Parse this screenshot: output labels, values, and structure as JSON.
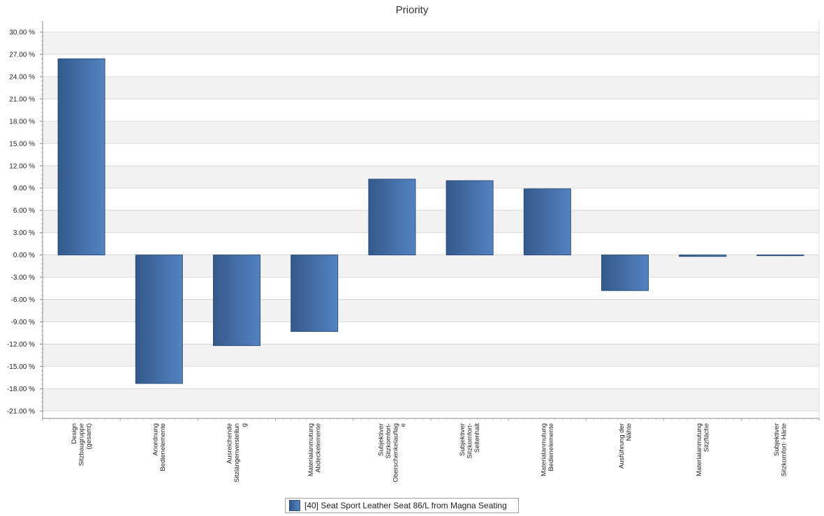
{
  "chart_data": {
    "type": "bar",
    "title": "Priority",
    "xlabel": "",
    "ylabel": "",
    "ylim": [
      -22.0,
      31.5
    ],
    "grid": true,
    "legend_position": "bottom",
    "y_ticks": [
      30,
      27,
      24,
      21,
      18,
      15,
      12,
      9,
      6,
      3,
      0,
      -3,
      -6,
      -9,
      -12,
      -15,
      -18,
      -21
    ],
    "y_tick_labels": [
      "30.00 %",
      "27.00 %",
      "24.00 %",
      "21.00 %",
      "18.00 %",
      "15.00 %",
      "12.00 %",
      "9.00 %",
      "6.00 %",
      "3.00 %",
      "0.00 %",
      "-3.00 %",
      "-6.00 %",
      "-9.00 %",
      "-12.00 %",
      "-15.00 %",
      "-18.00 %",
      "-21.00 %"
    ],
    "categories": [
      [
        "Design",
        "Sitzbaugruppe",
        "(gesamt)"
      ],
      [
        "Anordnung",
        "Bedienelemente"
      ],
      [
        "Ausreichende",
        "Sitzlängenverstellun",
        "g"
      ],
      [
        "Materialanmutung",
        "Abdeckelemente"
      ],
      [
        "Subjektiver",
        "Sitzkomfort-",
        "Oberschenkelauflag",
        "e"
      ],
      [
        "Subjektiver",
        "Sitzkomfort-",
        "Seitenhalt"
      ],
      [
        "Materialanmutung",
        "Bedienelemente"
      ],
      [
        "Ausführung der",
        "Nähte"
      ],
      [
        "Materialanmutung",
        "Sitzfläche"
      ],
      [
        "Subjektiver",
        "Sitzkomfort- Härte"
      ]
    ],
    "series": [
      {
        "name": "[40] Seat Sport Leather Seat 86/L from Magna Seating",
        "values": [
          26.4,
          -17.3,
          -12.2,
          -10.3,
          10.2,
          10.0,
          8.9,
          -4.8,
          -0.2,
          -0.1
        ]
      }
    ],
    "colors": {
      "bar_dark": "#34598b",
      "bar_light": "#5383c1",
      "bar_border": "#2c4f7c",
      "band": "#f2f2f2",
      "gridline": "#d9d9d9"
    }
  }
}
